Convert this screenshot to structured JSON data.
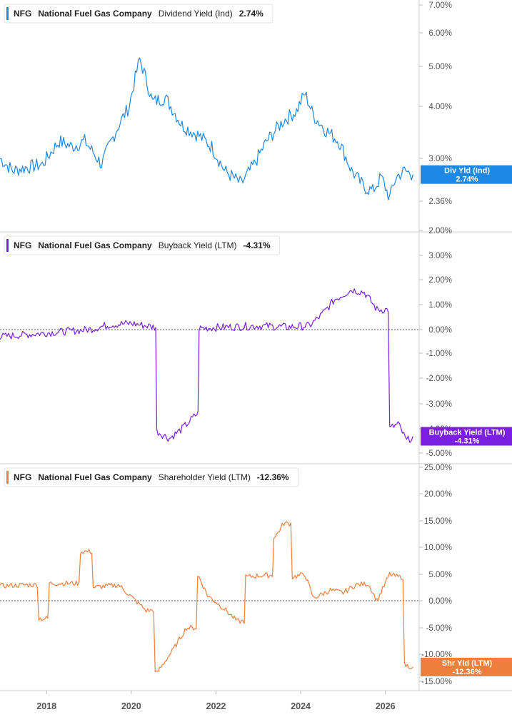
{
  "charts": [
    {
      "ticker": "NFG",
      "company": "National Fuel Gas Company",
      "metric": "Dividend Yield (Ind)",
      "value": "2.74%",
      "color": "#1e88e5",
      "tag_line1": "Div Yld (Ind)",
      "tag_line2": "2.74%",
      "ticks": [
        "7.00%",
        "6.00%",
        "5.00%",
        "4.00%",
        "3.00%",
        "2.36%",
        "2.00%"
      ]
    },
    {
      "ticker": "NFG",
      "company": "National Fuel Gas Company",
      "metric": "Buyback Yield (LTM)",
      "value": "-4.31%",
      "color": "#7b1fe0",
      "tag_line1": "Buyback Yield (LTM)",
      "tag_line2": "-4.31%",
      "ticks": [
        "3.00%",
        "2.00%",
        "1.00%",
        "0.00%",
        "-1.00%",
        "-2.00%",
        "-3.00%",
        "-4.00%",
        "-5.00%"
      ]
    },
    {
      "ticker": "NFG",
      "company": "National Fuel Gas Company",
      "metric": "Shareholder Yield (LTM)",
      "value": "-12.36%",
      "color": "#f07f3c",
      "tag_line1": "Shr Yld (LTM)",
      "tag_line2": "-12.36%",
      "ticks": [
        "25.00%",
        "20.00%",
        "15.00%",
        "10.00%",
        "5.00%",
        "0.00%",
        "-5.00%",
        "-10.00%",
        "-15.00%"
      ]
    }
  ],
  "x_axis": {
    "labels": [
      "2018",
      "2020",
      "2022",
      "2024",
      "2026"
    ]
  },
  "chart_data": [
    {
      "type": "line",
      "title": "NFG National Fuel Gas Company Dividend Yield (Ind) 2.74%",
      "scale": "log",
      "ylim": [
        2.0,
        7.0
      ],
      "x": [
        2016.9,
        2017.2,
        2017.5,
        2017.9,
        2018.3,
        2018.6,
        2018.9,
        2019.3,
        2019.7,
        2019.95,
        2020.2,
        2020.5,
        2020.8,
        2021.2,
        2021.6,
        2021.9,
        2022.2,
        2022.6,
        2022.9,
        2023.2,
        2023.6,
        2023.9,
        2024.1,
        2024.3,
        2024.6,
        2024.9,
        2025.2,
        2025.5,
        2025.7,
        2025.9,
        2026.1,
        2026.25,
        2026.45,
        2026.65
      ],
      "series": [
        {
          "name": "Div Yld (Ind)",
          "values": [
            3.0,
            2.8,
            2.85,
            2.9,
            3.3,
            3.2,
            3.3,
            2.9,
            3.6,
            4.0,
            5.2,
            4.1,
            4.2,
            3.6,
            3.4,
            3.2,
            2.8,
            2.6,
            2.9,
            3.3,
            3.7,
            3.9,
            4.3,
            3.8,
            3.5,
            3.3,
            2.8,
            2.55,
            2.5,
            2.7,
            2.4,
            2.7,
            2.8,
            2.74
          ]
        }
      ]
    },
    {
      "type": "line",
      "title": "NFG National Fuel Gas Company Buyback Yield (LTM) -4.31%",
      "ylim": [
        -5.0,
        3.0
      ],
      "x": [
        2016.9,
        2017.6,
        2018.3,
        2019.0,
        2019.5,
        2020.0,
        2020.55,
        2020.6,
        2020.9,
        2021.2,
        2021.55,
        2021.6,
        2022.2,
        2023.0,
        2023.7,
        2024.2,
        2024.5,
        2024.8,
        2025.2,
        2025.5,
        2025.8,
        2026.0,
        2026.1,
        2026.3,
        2026.5,
        2026.65
      ],
      "series": [
        {
          "name": "Buyback Yield (LTM)",
          "values": [
            -0.3,
            -0.2,
            -0.1,
            0.0,
            0.2,
            0.25,
            0.1,
            -4.1,
            -4.4,
            -4.0,
            -3.4,
            0.05,
            0.1,
            0.15,
            0.1,
            0.15,
            0.6,
            1.2,
            1.6,
            1.5,
            0.8,
            0.8,
            -4.0,
            -3.8,
            -4.5,
            -4.31
          ]
        }
      ]
    },
    {
      "type": "line",
      "title": "NFG National Fuel Gas Company Shareholder Yield (LTM) -12.36%",
      "ylim": [
        -15.0,
        25.0
      ],
      "x": [
        2016.9,
        2017.5,
        2017.85,
        2018.1,
        2018.9,
        2019.1,
        2019.7,
        2020.1,
        2020.35,
        2020.6,
        2021.0,
        2021.3,
        2021.6,
        2021.8,
        2022.2,
        2022.5,
        2022.7,
        2023.1,
        2023.4,
        2023.6,
        2023.8,
        2024.1,
        2024.3,
        2024.7,
        2025.0,
        2025.3,
        2025.6,
        2025.8,
        2026.1,
        2026.3,
        2026.45,
        2026.65
      ],
      "series": [
        {
          "name": "Shr Yld (LTM)",
          "values": [
            2.8,
            3.0,
            -3.3,
            3.3,
            9.2,
            2.5,
            3.0,
            0.0,
            -1.8,
            -13.5,
            -9.0,
            -5.0,
            4.5,
            1.0,
            -1.5,
            -3.8,
            4.5,
            4.8,
            12.0,
            14.5,
            4.5,
            5.0,
            0.5,
            2.0,
            1.5,
            3.0,
            3.2,
            0.0,
            5.0,
            4.5,
            -12.0,
            -12.36
          ]
        }
      ]
    }
  ]
}
